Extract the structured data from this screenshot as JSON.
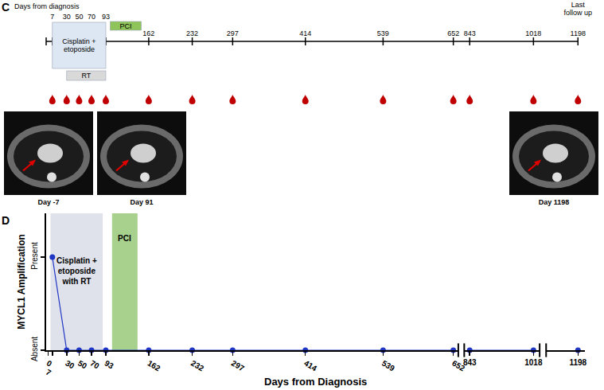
{
  "panel_labels": [
    "C",
    "D"
  ],
  "timeline": {
    "title": "Days from diagnosis",
    "end_label": "Last follow up",
    "days": [
      7,
      30,
      50,
      70,
      93,
      162,
      232,
      297,
      414,
      539,
      652,
      843,
      1018,
      1198
    ],
    "blood_draws": [
      7,
      30,
      50,
      70,
      93,
      162,
      232,
      297,
      414,
      539,
      652,
      843,
      1018,
      1198
    ],
    "treatments": [
      {
        "label": [
          "Cisplatin +",
          "etoposide"
        ],
        "x": [
          7,
          93
        ],
        "color": "#dde7f3"
      },
      {
        "label": [
          "RT"
        ],
        "x": [
          30,
          93
        ],
        "color": "#d9d9d9"
      },
      {
        "label": [
          "PCI"
        ],
        "x": [
          100,
          150
        ],
        "color": "#8fc45a"
      }
    ],
    "images": [
      {
        "label": "Day -7"
      },
      {
        "label": "Day 91"
      },
      {
        "label": "Day 1198"
      }
    ]
  },
  "chart_data": {
    "type": "line",
    "x_label": "Days from Diagnosis",
    "y_label": "MYCL1 Amplification",
    "x": [
      7,
      30,
      50,
      70,
      93,
      162,
      232,
      297,
      414,
      539,
      652,
      843,
      1018,
      1198
    ],
    "values": [
      1,
      0,
      0,
      0,
      0,
      0,
      0,
      0,
      0,
      0,
      0,
      0,
      0,
      0
    ],
    "color": "#1f35c4",
    "marker": "circle",
    "xlim": [
      [
        -3,
        660
      ],
      [
        828,
        1035
      ],
      [
        1120,
        1215
      ]
    ],
    "xticks": [
      0,
      7,
      30,
      50,
      70,
      93,
      162,
      232,
      297,
      414,
      539,
      652,
      843,
      1018,
      1198
    ],
    "ylim": [
      0,
      1.47
    ],
    "yticks": [
      {
        "value": 0,
        "label": "Absent"
      },
      {
        "value": 1,
        "label": "Present"
      }
    ],
    "grid": false,
    "shaded_regions": [
      {
        "label": [
          "Cisplatin +",
          "etoposide",
          "with RT"
        ],
        "x": [
          4,
          88
        ],
        "color": "#dfe2ea"
      },
      {
        "label": [
          "PCI"
        ],
        "x": [
          103,
          144
        ],
        "color": "#a9d18e"
      }
    ]
  }
}
